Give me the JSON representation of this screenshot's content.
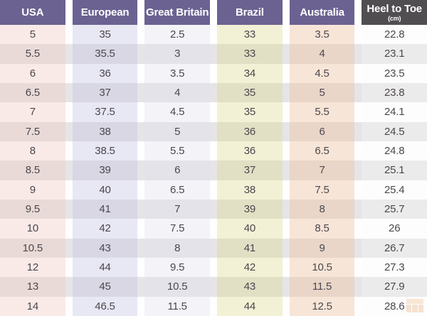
{
  "header": {
    "cells": [
      {
        "label": "USA"
      },
      {
        "label": "European"
      },
      {
        "label": "Great Britain"
      },
      {
        "label": "Brazil"
      },
      {
        "label": "Australia"
      },
      {
        "label": "Heel to Toe",
        "sublabel": "(cm)"
      }
    ]
  },
  "chart_data": {
    "type": "table",
    "title": "",
    "columns": [
      "USA",
      "European",
      "Great Britain",
      "Brazil",
      "Australia",
      "Heel to Toe (cm)"
    ],
    "rows": [
      [
        "5",
        "35",
        "2.5",
        "33",
        "3.5",
        "22.8"
      ],
      [
        "5.5",
        "35.5",
        "3",
        "33",
        "4",
        "23.1"
      ],
      [
        "6",
        "36",
        "3.5",
        "34",
        "4.5",
        "23.5"
      ],
      [
        "6.5",
        "37",
        "4",
        "35",
        "5",
        "23.8"
      ],
      [
        "7",
        "37.5",
        "4.5",
        "35",
        "5.5",
        "24.1"
      ],
      [
        "7.5",
        "38",
        "5",
        "36",
        "6",
        "24.5"
      ],
      [
        "8",
        "38.5",
        "5.5",
        "36",
        "6.5",
        "24.8"
      ],
      [
        "8.5",
        "39",
        "6",
        "37",
        "7",
        "25.1"
      ],
      [
        "9",
        "40",
        "6.5",
        "38",
        "7.5",
        "25.4"
      ],
      [
        "9.5",
        "41",
        "7",
        "39",
        "8",
        "25.7"
      ],
      [
        "10",
        "42",
        "7.5",
        "40",
        "8.5",
        "26"
      ],
      [
        "10.5",
        "43",
        "8",
        "41",
        "9",
        "26.7"
      ],
      [
        "12",
        "44",
        "9.5",
        "42",
        "10.5",
        "27.3"
      ],
      [
        "13",
        "45",
        "10.5",
        "43",
        "11.5",
        "27.9"
      ],
      [
        "14",
        "46.5",
        "11.5",
        "44",
        "12.5",
        "28.6"
      ]
    ]
  },
  "colors": {
    "header_bg": "#6b6292",
    "header_last_bg": "#514e51",
    "header_text": "#ffffff",
    "body_text": "#4c474c",
    "column_tints_odd": [
      "#f9eae7",
      "#e8e7f4",
      "#f4f3f8",
      "#f2f1d5",
      "#f7e5d7",
      "#fdfdfd"
    ],
    "column_tints_even": [
      "#e9dad8",
      "#d9d7e4",
      "#e4e3e9",
      "#e1e0c5",
      "#e9d6c9",
      "#ebebeb"
    ]
  },
  "watermark": {
    "icon": "store-logo"
  }
}
